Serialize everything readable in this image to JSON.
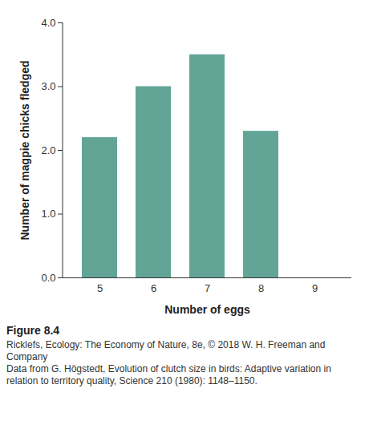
{
  "chart_data": {
    "type": "bar",
    "categories": [
      5,
      6,
      7,
      8,
      9
    ],
    "values": [
      2.2,
      3.0,
      3.5,
      2.3,
      0
    ],
    "color": "#62a597",
    "x_label": "Number of eggs",
    "y_label": "Number of magpie chicks fledged",
    "ylim": [
      0,
      4
    ],
    "yticks": [
      0,
      1,
      2,
      3,
      4
    ],
    "grid": false,
    "caption": [
      "Figure 8.4",
      "Ricklefs, Ecology: The Economy of Nature, 8e, © 2018 W. H. Freeman and Company",
      "Data from G. Högstedt, Evolution of clutch size in birds: Adaptive variation in relation to territory quality, Science 210 (1980): 1148–1150."
    ]
  }
}
